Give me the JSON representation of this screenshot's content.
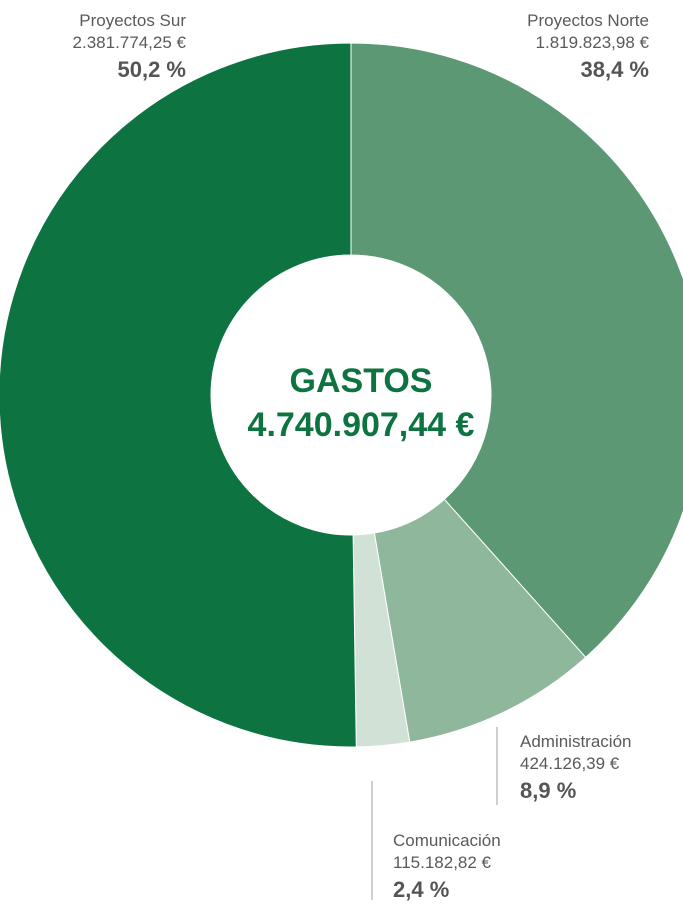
{
  "center": {
    "title": "GASTOS",
    "total": "4.740.907,44 €",
    "title_color": "#0d7340"
  },
  "labels": {
    "sur": {
      "name": "Proyectos Sur",
      "amount": "2.381.774,25 €",
      "pct": "50,2 %"
    },
    "norte": {
      "name": "Proyectos Norte",
      "amount": "1.819.823,98 €",
      "pct": "38,4 %"
    },
    "admin": {
      "name": "Administración",
      "amount": "424.126,39 €",
      "pct": "8,9 %"
    },
    "com": {
      "name": "Comunicación",
      "amount": "115.182,82 €",
      "pct": "2,4 %"
    }
  },
  "chart_data": {
    "type": "pie",
    "donut": true,
    "title": "GASTOS",
    "total": 4740907.44,
    "categories": [
      "Proyectos Norte",
      "Administración",
      "Comunicación",
      "Proyectos Sur"
    ],
    "values": [
      1819823.98,
      424126.39,
      115182.82,
      2381774.25
    ],
    "percentages": [
      38.4,
      8.9,
      2.4,
      50.2
    ],
    "colors": [
      "#5b9873",
      "#8fb79b",
      "#d2e1d6",
      "#0d7340"
    ],
    "start": "top, clockwise",
    "legend": "labels outside slices"
  }
}
